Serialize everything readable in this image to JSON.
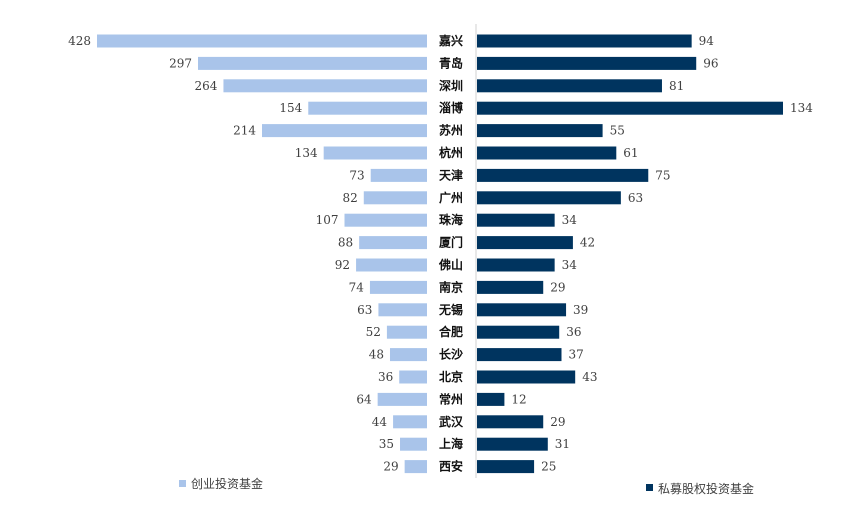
{
  "chart_data": {
    "type": "bar",
    "orientation": "horizontal-butterfly",
    "categories": [
      "嘉兴",
      "青岛",
      "深圳",
      "淄博",
      "苏州",
      "杭州",
      "天津",
      "广州",
      "珠海",
      "厦门",
      "佛山",
      "南京",
      "无锡",
      "合肥",
      "长沙",
      "北京",
      "常州",
      "武汉",
      "上海",
      "西安"
    ],
    "series": [
      {
        "name": "创业投资基金",
        "color": "#a9c4ea",
        "direction": "left",
        "values": [
          428,
          297,
          264,
          154,
          214,
          134,
          73,
          82,
          107,
          88,
          92,
          74,
          63,
          52,
          48,
          36,
          64,
          44,
          35,
          29
        ]
      },
      {
        "name": "私募股权投资基金",
        "color": "#00345f",
        "direction": "right",
        "values": [
          94,
          96,
          81,
          134,
          55,
          61,
          75,
          63,
          34,
          42,
          34,
          29,
          39,
          36,
          37,
          43,
          12,
          29,
          31,
          25
        ]
      }
    ],
    "legend": {
      "left_position": "bottom-left",
      "right_position": "bottom-right"
    }
  }
}
